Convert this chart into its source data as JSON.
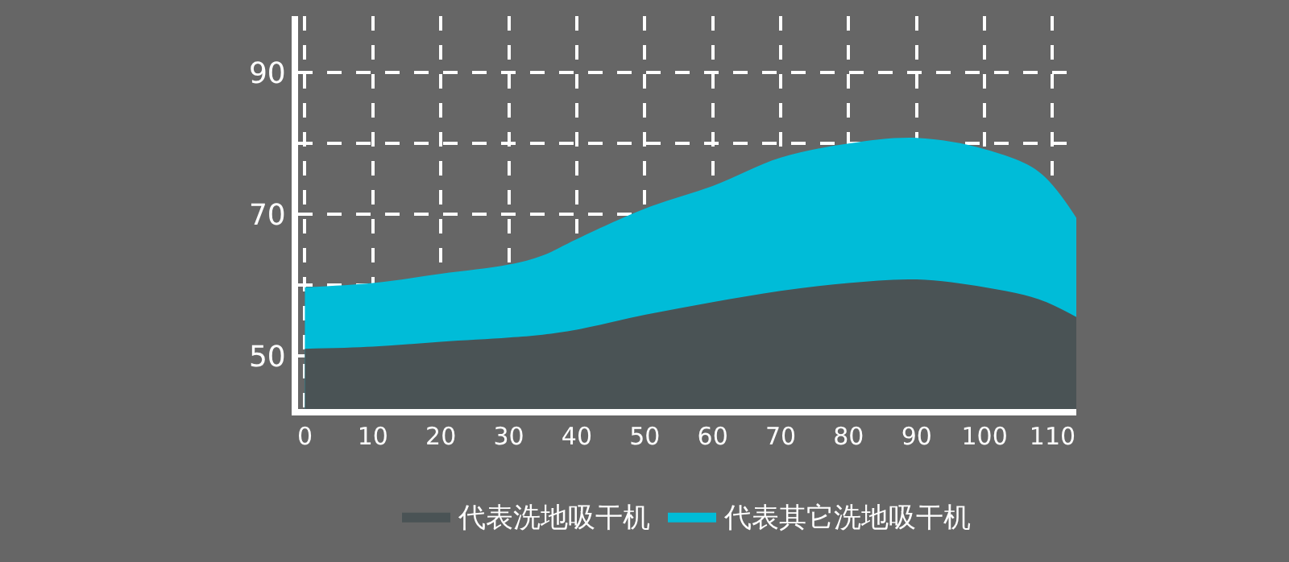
{
  "chart_data": {
    "type": "area",
    "x": [
      0,
      10,
      20,
      30,
      35,
      40,
      50,
      60,
      70,
      80,
      90,
      100,
      108,
      113.5
    ],
    "series": [
      {
        "name": "代表其它洗地吸干机",
        "color": "#00bcd8",
        "values": [
          59.7,
          60.3,
          61.6,
          62.9,
          64.2,
          66.5,
          70.8,
          74,
          78,
          80,
          80.8,
          79.2,
          76,
          69.5
        ]
      },
      {
        "name": "代表洗地吸干机",
        "color": "#4a5355",
        "values": [
          51,
          51.3,
          52,
          52.6,
          53,
          53.7,
          55.8,
          57.6,
          59.2,
          60.3,
          60.8,
          59.7,
          58,
          55.5
        ]
      }
    ],
    "xlim": [
      -1,
      113.5
    ],
    "xticks": [
      0,
      10,
      20,
      30,
      40,
      50,
      60,
      70,
      80,
      90,
      100,
      110
    ],
    "ylim": [
      42.5,
      98
    ],
    "yticks": [
      50,
      {
        "value": 60,
        "label": null
      },
      70,
      {
        "value": 80,
        "label": null
      },
      90
    ],
    "grid": true,
    "line_style": "dashed",
    "legend": "bottom"
  }
}
